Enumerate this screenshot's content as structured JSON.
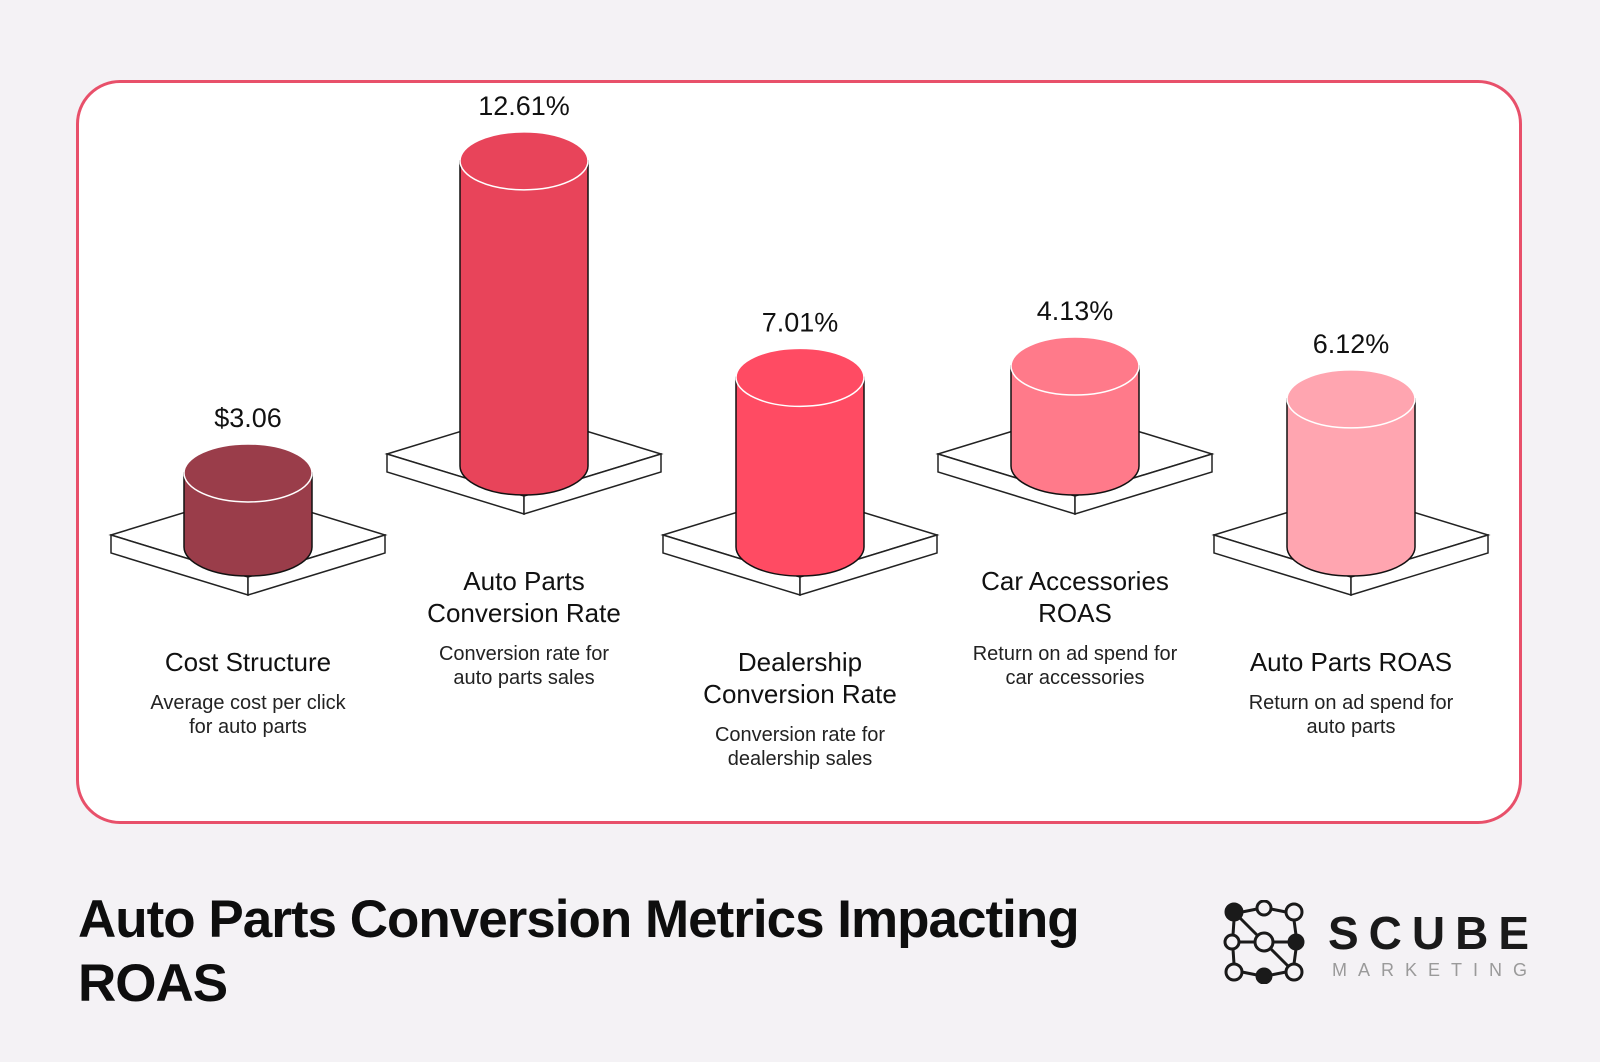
{
  "title": "Auto Parts Conversion Metrics Impacting ROAS",
  "brand": {
    "name": "SCUBE",
    "subtitle": "MARKETING"
  },
  "chart_data": {
    "type": "bar",
    "style": "3d-cylinder-on-platform",
    "categories": [
      "Cost Structure",
      "Auto Parts Conversion Rate",
      "Dealership Conversion Rate",
      "Car Accessories ROAS",
      "Auto Parts ROAS"
    ],
    "values": [
      3.06,
      12.61,
      7.01,
      4.13,
      6.12
    ],
    "value_labels": [
      "$3.06",
      "12.61%",
      "7.01%",
      "4.13%",
      "6.12%"
    ],
    "descriptions": [
      "Average cost per click for auto parts",
      "Conversion rate for auto parts sales",
      "Conversion rate for dealership sales",
      "Return on ad spend for car accessories",
      "Return on ad spend for auto parts"
    ],
    "colors": [
      "#9a3d4a",
      "#e8445a",
      "#ff4b63",
      "#ff7a8a",
      "#ffa5b0"
    ],
    "xlabel": "",
    "ylabel": "",
    "grid": false
  }
}
